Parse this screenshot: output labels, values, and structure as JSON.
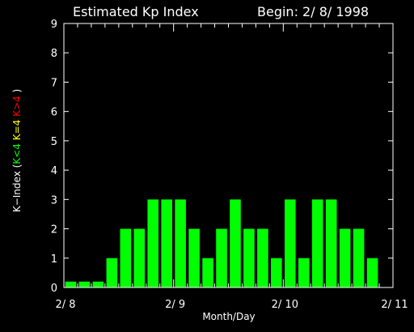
{
  "chart_data": {
    "type": "bar",
    "title": "Estimated Kp Index",
    "begin_label": "Begin: 2/ 8/ 1998",
    "xlabel": "Month/Day",
    "ylabel_parts": [
      {
        "text": "K−Index (",
        "color": "#ffffff"
      },
      {
        "text": "K<4",
        "color": "#00ff00"
      },
      {
        "text": " ",
        "color": "#ffffff"
      },
      {
        "text": "K=4",
        "color": "#ffff00"
      },
      {
        "text": " ",
        "color": "#ffffff"
      },
      {
        "text": "K>4",
        "color": "#ff0000"
      },
      {
        "text": " )",
        "color": "#ffffff"
      }
    ],
    "ylim": [
      0,
      9
    ],
    "yticks": [
      "0",
      "1",
      "2",
      "3",
      "4",
      "5",
      "6",
      "7",
      "8",
      "9"
    ],
    "xlim": [
      0,
      24
    ],
    "xticks": [
      {
        "pos": 0,
        "label": "2/ 8"
      },
      {
        "pos": 8,
        "label": "2/ 9"
      },
      {
        "pos": 16,
        "label": "2/ 10"
      },
      {
        "pos": 24,
        "label": "2/ 11"
      }
    ],
    "values": [
      0.2,
      0.2,
      0.2,
      1,
      2,
      2,
      3,
      3,
      3,
      2,
      1,
      2,
      3,
      2,
      2,
      1,
      3,
      1,
      3,
      3,
      2,
      2,
      1
    ],
    "colors": {
      "below_4": "#00ff00",
      "equal_4": "#ffff00",
      "above_4": "#ff0000",
      "axes": "#ffffff",
      "background": "#000000"
    },
    "grid": false,
    "legend": "none"
  }
}
